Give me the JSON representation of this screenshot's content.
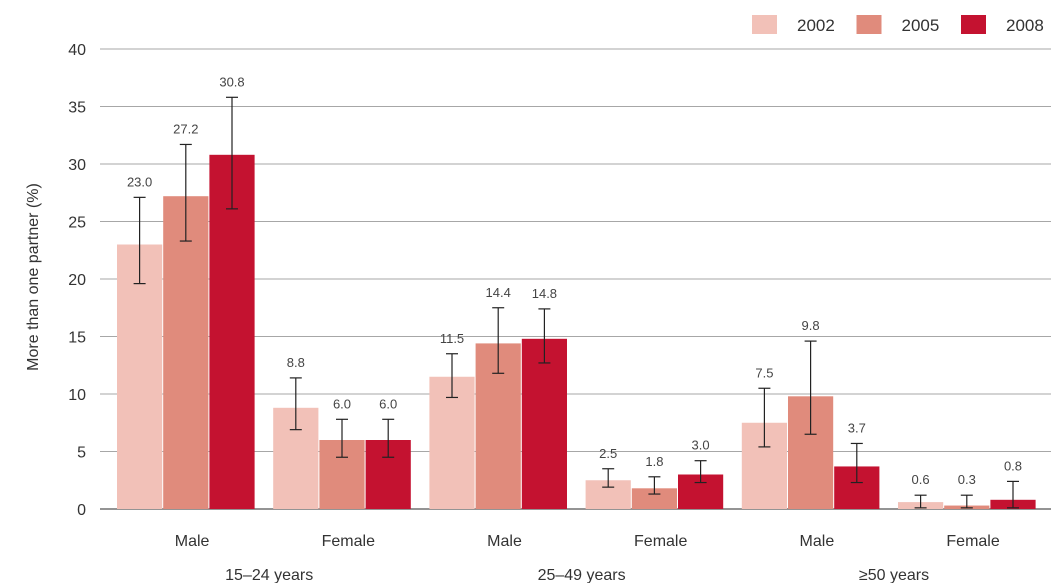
{
  "chart_data": {
    "type": "bar",
    "ylabel": "More than one partner (%)",
    "ylim": [
      0,
      40
    ],
    "yticks": [
      0,
      5,
      10,
      15,
      20,
      25,
      30,
      35,
      40
    ],
    "grid": true,
    "legend_position": "top-right",
    "categories": [
      "Male",
      "Female",
      "Male",
      "Female",
      "Male",
      "Female"
    ],
    "groups": [
      {
        "label": "15–24 years",
        "categories": [
          "Male",
          "Female"
        ]
      },
      {
        "label": "25–49 years",
        "categories": [
          "Male",
          "Female"
        ]
      },
      {
        "label": "≥50 years",
        "categories": [
          "Male",
          "Female"
        ]
      }
    ],
    "series": [
      {
        "name": "2002",
        "color": "#f2c1b8",
        "values": [
          23.0,
          8.8,
          11.5,
          2.5,
          7.5,
          0.6
        ],
        "error_low": [
          19.6,
          6.9,
          9.7,
          1.9,
          5.4,
          0.1
        ],
        "error_high": [
          27.1,
          11.4,
          13.5,
          3.5,
          10.5,
          1.2
        ]
      },
      {
        "name": "2005",
        "color": "#e08b7c",
        "values": [
          27.2,
          6.0,
          14.4,
          1.8,
          9.8,
          0.3
        ],
        "error_low": [
          23.3,
          4.5,
          11.8,
          1.3,
          6.5,
          0.1
        ],
        "error_high": [
          31.7,
          7.8,
          17.5,
          2.8,
          14.6,
          1.2
        ]
      },
      {
        "name": "2008",
        "color": "#c41230",
        "values": [
          30.8,
          6.0,
          14.8,
          3.0,
          3.7,
          0.8
        ],
        "error_low": [
          26.1,
          4.5,
          12.7,
          2.3,
          2.3,
          0.1
        ],
        "error_high": [
          35.8,
          7.8,
          17.4,
          4.2,
          5.7,
          2.4
        ]
      }
    ],
    "data_labels": [
      [
        "23.0",
        "8.8",
        "11.5",
        "2.5",
        "7.5",
        "0.6"
      ],
      [
        "27.2",
        "6.0",
        "14.4",
        "1.8",
        "9.8",
        "0.3"
      ],
      [
        "30.8",
        "6.0",
        "14.8",
        "3.0",
        "3.7",
        "0.8"
      ]
    ]
  }
}
